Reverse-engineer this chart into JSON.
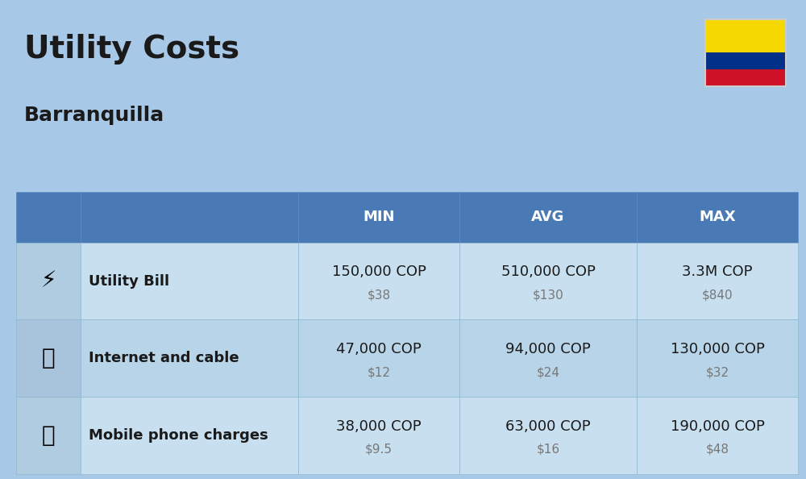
{
  "title": "Utility Costs",
  "subtitle": "Barranquilla",
  "background_color": "#a8c8e8",
  "header_bg_color": "#4a7ab5",
  "header_text_color": "#ffffff",
  "row_bg_color_1": "#c8dff0",
  "row_bg_color_2": "#b8d4e8",
  "icon_col_bg": "#9bbdd8",
  "col_headers": [
    "MIN",
    "AVG",
    "MAX"
  ],
  "rows": [
    {
      "label": "Utility Bill",
      "min_cop": "150,000 COP",
      "min_usd": "$38",
      "avg_cop": "510,000 COP",
      "avg_usd": "$130",
      "max_cop": "3.3M COP",
      "max_usd": "$840"
    },
    {
      "label": "Internet and cable",
      "min_cop": "47,000 COP",
      "min_usd": "$12",
      "avg_cop": "94,000 COP",
      "avg_usd": "$24",
      "max_cop": "130,000 COP",
      "max_usd": "$32"
    },
    {
      "label": "Mobile phone charges",
      "min_cop": "38,000 COP",
      "min_usd": "$9.5",
      "avg_cop": "63,000 COP",
      "avg_usd": "$16",
      "max_cop": "190,000 COP",
      "max_usd": "$48"
    }
  ],
  "flag_colors": [
    "#f5d800",
    "#f5d800",
    "#003087",
    "#ce1126"
  ],
  "title_fontsize": 28,
  "subtitle_fontsize": 18,
  "header_fontsize": 13,
  "label_fontsize": 13,
  "value_fontsize": 13,
  "usd_fontsize": 11
}
